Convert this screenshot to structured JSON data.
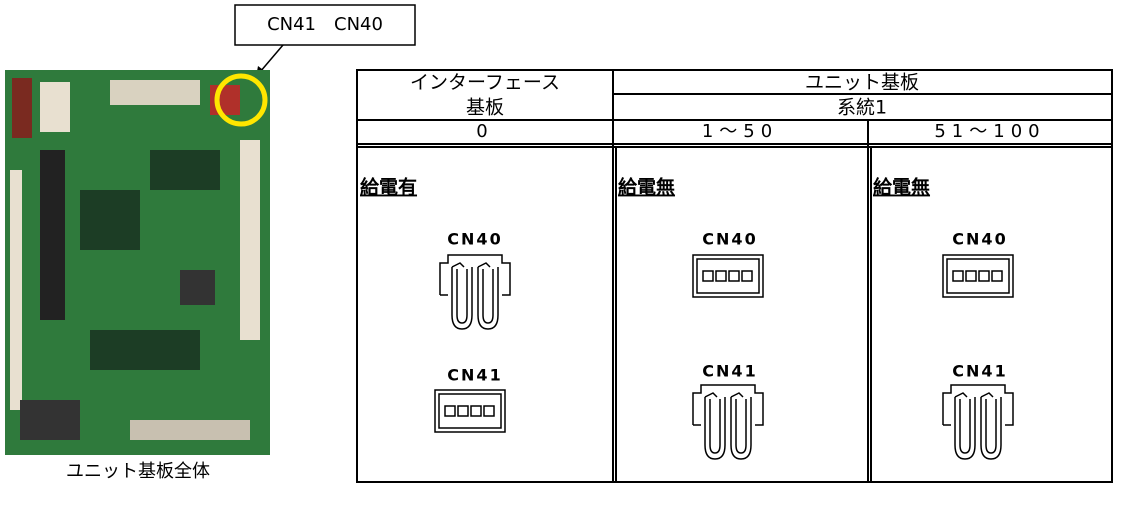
{
  "callout": {
    "label": "CN41　CN40"
  },
  "photo": {
    "caption": "ユニット基板全体"
  },
  "table": {
    "header": {
      "interface_line1": "インターフェース",
      "interface_line2": "基板",
      "unit": "ユニット基板",
      "system": "系統1"
    },
    "ranges": [
      "0",
      "1～50",
      "51～100"
    ],
    "columns": [
      {
        "status": "給電有",
        "connectors": [
          "CN40",
          "CN41"
        ]
      },
      {
        "status": "給電無",
        "connectors": [
          "CN40",
          "CN41"
        ]
      },
      {
        "status": "給電無",
        "connectors": [
          "CN40",
          "CN41"
        ]
      }
    ]
  }
}
